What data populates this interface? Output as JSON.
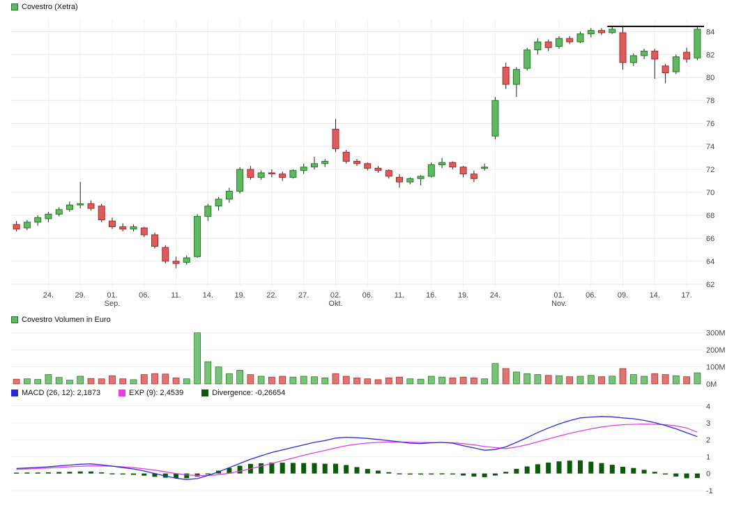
{
  "colors": {
    "up": "#62b862",
    "up_border": "#1f7a1f",
    "down": "#dd5b5b",
    "down_border": "#a62a2a",
    "wick": "#222222",
    "macd_line": "#2a2ad4",
    "exp_line": "#e43ee4",
    "divergence": "#0a5a0a",
    "resistance": "#000000",
    "grid": "#e6e6e6",
    "grid_faint": "#f0f0f0",
    "axis_text": "#444444"
  },
  "chart_data": [
    {
      "type": "candlestick",
      "title": "Covestro (Xetra)",
      "ylabel": "",
      "xlabel": "",
      "ylim": [
        61.75,
        85.05
      ],
      "y_ticks": [
        62,
        64,
        66,
        68,
        70,
        72,
        74,
        76,
        78,
        80,
        82,
        84
      ],
      "x_ticks": [
        {
          "i": 3,
          "label": "24."
        },
        {
          "i": 6,
          "label": "29."
        },
        {
          "i": 9,
          "label": "01.",
          "sub": "Sep."
        },
        {
          "i": 12,
          "label": "06."
        },
        {
          "i": 15,
          "label": "11."
        },
        {
          "i": 18,
          "label": "14."
        },
        {
          "i": 21,
          "label": "19."
        },
        {
          "i": 24,
          "label": "22."
        },
        {
          "i": 27,
          "label": "27."
        },
        {
          "i": 30,
          "label": "02.",
          "sub": "Okt."
        },
        {
          "i": 33,
          "label": "06."
        },
        {
          "i": 36,
          "label": "11."
        },
        {
          "i": 39,
          "label": "16."
        },
        {
          "i": 42,
          "label": "19."
        },
        {
          "i": 45,
          "label": "24."
        },
        {
          "i": 51,
          "label": "01.",
          "sub": "Nov."
        },
        {
          "i": 54,
          "label": "06."
        },
        {
          "i": 57,
          "label": "09."
        },
        {
          "i": 60,
          "label": "14."
        },
        {
          "i": 63,
          "label": "17."
        }
      ],
      "resistance_line": {
        "price": 84.45,
        "from_index": 56,
        "to_index": 64
      },
      "columns": [
        "date",
        "open",
        "high",
        "low",
        "close",
        "volume_mio_eur"
      ],
      "candles": [
        [
          "21.08.",
          67.2,
          67.5,
          66.6,
          66.8,
          28
        ],
        [
          "22.08.",
          66.9,
          67.6,
          66.7,
          67.4,
          30
        ],
        [
          "23.08.",
          67.4,
          68.0,
          67.1,
          67.8,
          26
        ],
        [
          "24.08.",
          67.7,
          68.3,
          67.4,
          68.1,
          55
        ],
        [
          "25.08.",
          68.1,
          68.7,
          67.9,
          68.5,
          38
        ],
        [
          "28.08.",
          68.5,
          69.2,
          68.3,
          68.9,
          22
        ],
        [
          "29.08.",
          68.9,
          70.9,
          68.6,
          69.0,
          45
        ],
        [
          "30.08.",
          69.0,
          69.3,
          68.4,
          68.6,
          32
        ],
        [
          "31.08.",
          68.8,
          69.0,
          67.4,
          67.6,
          30
        ],
        [
          "01.09.",
          67.5,
          67.8,
          66.8,
          67.0,
          48
        ],
        [
          "04.09.",
          67.0,
          67.3,
          66.6,
          66.8,
          30
        ],
        [
          "05.09.",
          66.8,
          67.2,
          66.6,
          67.0,
          25
        ],
        [
          "06.09.",
          66.9,
          67.0,
          66.1,
          66.3,
          55
        ],
        [
          "07.09.",
          66.3,
          66.5,
          65.1,
          65.3,
          60
        ],
        [
          "08.09.",
          65.2,
          65.4,
          63.8,
          64.0,
          58
        ],
        [
          "11.09.",
          64.0,
          64.4,
          63.4,
          63.8,
          35
        ],
        [
          "12.09.",
          63.9,
          64.5,
          63.7,
          64.3,
          30
        ],
        [
          "13.09.",
          64.4,
          68.1,
          64.3,
          67.9,
          300
        ],
        [
          "14.09.",
          67.9,
          69.0,
          67.5,
          68.8,
          130
        ],
        [
          "15.09.",
          68.8,
          69.6,
          68.4,
          69.4,
          100
        ],
        [
          "18.09.",
          69.4,
          70.4,
          69.1,
          70.1,
          60
        ],
        [
          "19.09.",
          70.1,
          72.2,
          69.9,
          72.0,
          80
        ],
        [
          "20.09.",
          72.0,
          72.3,
          71.1,
          71.3,
          55
        ],
        [
          "21.09.",
          71.3,
          71.9,
          71.1,
          71.7,
          45
        ],
        [
          "22.09.",
          71.7,
          72.0,
          71.3,
          71.6,
          40
        ],
        [
          "25.09.",
          71.6,
          71.8,
          71.0,
          71.3,
          45
        ],
        [
          "26.09.",
          71.3,
          72.0,
          71.2,
          71.9,
          40
        ],
        [
          "27.09.",
          71.9,
          72.5,
          71.6,
          72.2,
          45
        ],
        [
          "28.09.",
          72.2,
          73.1,
          72.0,
          72.5,
          42
        ],
        [
          "29.09.",
          72.5,
          72.9,
          72.2,
          72.7,
          35
        ],
        [
          "02.10.",
          75.5,
          76.4,
          73.5,
          73.8,
          60
        ],
        [
          "04.10.",
          73.5,
          73.7,
          72.5,
          72.7,
          45
        ],
        [
          "05.10.",
          72.7,
          72.9,
          72.3,
          72.5,
          35
        ],
        [
          "06.10.",
          72.5,
          72.6,
          71.9,
          72.1,
          30
        ],
        [
          "09.10.",
          72.1,
          72.3,
          71.7,
          71.9,
          25
        ],
        [
          "10.10.",
          71.9,
          72.0,
          71.2,
          71.4,
          35
        ],
        [
          "11.10.",
          71.3,
          71.6,
          70.4,
          70.9,
          40
        ],
        [
          "12.10.",
          70.9,
          71.3,
          70.7,
          71.2,
          30
        ],
        [
          "13.10.",
          71.2,
          71.5,
          70.6,
          71.4,
          28
        ],
        [
          "16.10.",
          71.4,
          72.6,
          71.3,
          72.4,
          45
        ],
        [
          "17.10.",
          72.4,
          73.0,
          72.1,
          72.6,
          40
        ],
        [
          "18.10.",
          72.6,
          72.7,
          72.0,
          72.2,
          35
        ],
        [
          "19.10.",
          72.2,
          72.3,
          71.3,
          71.6,
          40
        ],
        [
          "20.10.",
          71.6,
          71.9,
          70.9,
          71.2,
          35
        ],
        [
          "23.10.",
          72.1,
          72.5,
          71.9,
          72.2,
          30
        ],
        [
          "24.10.",
          74.9,
          78.3,
          74.6,
          78.0,
          120
        ],
        [
          "25.10.",
          80.9,
          81.3,
          79.0,
          79.4,
          90
        ],
        [
          "26.10.",
          79.4,
          80.9,
          78.3,
          80.7,
          70
        ],
        [
          "27.10.",
          80.8,
          82.6,
          80.6,
          82.4,
          60
        ],
        [
          "30.10.",
          82.4,
          83.4,
          82.0,
          83.1,
          55
        ],
        [
          "31.10.",
          83.1,
          83.3,
          82.3,
          82.6,
          50
        ],
        [
          "01.11.",
          82.7,
          83.6,
          82.5,
          83.4,
          48
        ],
        [
          "02.11.",
          83.4,
          83.6,
          82.9,
          83.1,
          42
        ],
        [
          "03.11.",
          83.1,
          84.0,
          83.0,
          83.8,
          45
        ],
        [
          "06.11.",
          83.8,
          84.3,
          83.5,
          84.1,
          50
        ],
        [
          "07.11.",
          84.1,
          84.3,
          83.7,
          83.9,
          42
        ],
        [
          "08.11.",
          83.9,
          84.5,
          83.8,
          84.2,
          46
        ],
        [
          "09.11.",
          83.9,
          84.4,
          80.7,
          81.3,
          90
        ],
        [
          "10.11.",
          81.3,
          82.1,
          81.0,
          81.9,
          55
        ],
        [
          "13.11.",
          81.9,
          82.5,
          81.6,
          82.3,
          45
        ],
        [
          "14.11.",
          82.3,
          82.5,
          79.9,
          81.6,
          60
        ],
        [
          "15.11.",
          81.0,
          81.2,
          79.5,
          80.4,
          55
        ],
        [
          "16.11.",
          80.5,
          82.0,
          80.3,
          81.8,
          48
        ],
        [
          "17.11.",
          82.2,
          82.6,
          81.3,
          81.6,
          42
        ],
        [
          "20.11.",
          81.7,
          84.5,
          81.5,
          84.2,
          65
        ]
      ]
    },
    {
      "type": "bar",
      "title": "Covestro Volumen in Euro",
      "ylim": [
        0,
        315
      ],
      "y_ticks": [
        {
          "v": 0,
          "label": "0M"
        },
        {
          "v": 100,
          "label": "100M"
        },
        {
          "v": 200,
          "label": "200M"
        },
        {
          "v": 300,
          "label": "300M"
        }
      ],
      "values_ref": "chart_data[0].candles[].volume_mio_eur",
      "bar_color_rule": "green if close >= open else red"
    },
    {
      "type": "line",
      "title": "MACD",
      "ylim": [
        -1.42,
        4.2
      ],
      "y_ticks": [
        4,
        3,
        2,
        1,
        0,
        -1
      ],
      "legend": [
        {
          "label": "MACD (26, 12): 2,1873",
          "color": "#2a2ad4"
        },
        {
          "label": "EXP (9): 2,4539",
          "color": "#e43ee4"
        },
        {
          "label": "Divergence: -0,26654",
          "color": "#0a5a0a"
        }
      ],
      "values": {
        "macd": [
          0.3,
          0.33,
          0.36,
          0.4,
          0.45,
          0.5,
          0.55,
          0.57,
          0.52,
          0.44,
          0.35,
          0.27,
          0.15,
          0.0,
          -0.15,
          -0.28,
          -0.36,
          -0.3,
          -0.12,
          0.1,
          0.35,
          0.6,
          0.85,
          1.05,
          1.25,
          1.4,
          1.55,
          1.7,
          1.85,
          1.95,
          2.1,
          2.15,
          2.12,
          2.08,
          2.02,
          1.95,
          1.88,
          1.8,
          1.78,
          1.82,
          1.85,
          1.8,
          1.65,
          1.52,
          1.38,
          1.42,
          1.58,
          1.85,
          2.13,
          2.43,
          2.7,
          2.94,
          3.14,
          3.3,
          3.35,
          3.38,
          3.36,
          3.3,
          3.25,
          3.15,
          3.02,
          2.85,
          2.65,
          2.42,
          2.1873
        ],
        "exp": [
          0.25,
          0.27,
          0.3,
          0.33,
          0.36,
          0.4,
          0.43,
          0.45,
          0.45,
          0.43,
          0.4,
          0.35,
          0.28,
          0.2,
          0.1,
          0.0,
          -0.08,
          -0.12,
          -0.12,
          -0.07,
          0.02,
          0.14,
          0.28,
          0.44,
          0.6,
          0.76,
          0.92,
          1.08,
          1.23,
          1.37,
          1.52,
          1.65,
          1.74,
          1.81,
          1.85,
          1.87,
          1.87,
          1.86,
          1.84,
          1.84,
          1.84,
          1.83,
          1.77,
          1.7,
          1.6,
          1.54,
          1.48,
          1.57,
          1.71,
          1.88,
          2.05,
          2.22,
          2.38,
          2.52,
          2.65,
          2.76,
          2.84,
          2.9,
          2.92,
          2.93,
          2.92,
          2.9,
          2.83,
          2.7,
          2.4539
        ],
        "divergence": [
          0.05,
          0.06,
          0.06,
          0.07,
          0.09,
          0.1,
          0.12,
          0.12,
          0.07,
          0.01,
          -0.05,
          -0.08,
          -0.13,
          -0.2,
          -0.25,
          -0.28,
          -0.28,
          -0.18,
          0.0,
          0.17,
          0.33,
          0.46,
          0.57,
          0.61,
          0.65,
          0.64,
          0.63,
          0.62,
          0.62,
          0.58,
          0.58,
          0.5,
          0.38,
          0.27,
          0.17,
          0.08,
          0.01,
          -0.06,
          -0.06,
          -0.02,
          0.01,
          -0.03,
          -0.12,
          -0.18,
          -0.22,
          -0.12,
          0.1,
          0.28,
          0.42,
          0.55,
          0.65,
          0.72,
          0.76,
          0.78,
          0.7,
          0.62,
          0.52,
          0.4,
          0.33,
          0.22,
          0.1,
          -0.05,
          -0.18,
          -0.28,
          -0.26654
        ]
      }
    }
  ]
}
